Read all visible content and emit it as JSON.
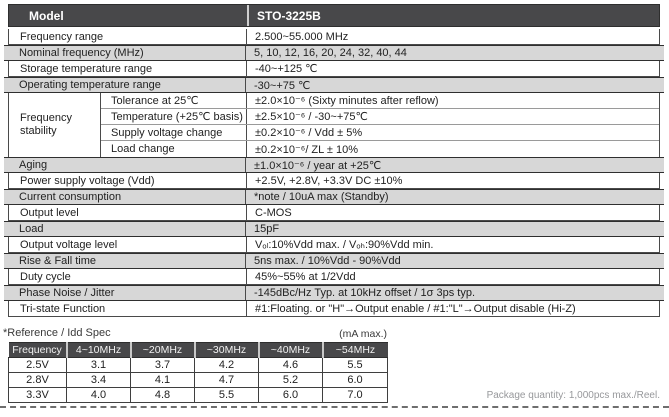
{
  "colors": {
    "header_bg": "#48484a",
    "shaded_row_bg": "#d7d7d7",
    "border_dark": "#4a4a4a",
    "note_gray": "#97989b"
  },
  "spec": {
    "header": {
      "label": "Model",
      "value": "STO-3225B"
    },
    "rows": [
      {
        "label": "Frequency range",
        "value": "2.500~55.000 MHz"
      },
      {
        "label": "Nominal frequency (MHz)",
        "value": "5, 10, 12, 16, 20, 24, 32, 40, 44"
      },
      {
        "label": "Storage temperature range",
        "value": "-40~+125 ℃"
      },
      {
        "label": "Operating temperature range",
        "value": "-30~+75 ℃"
      },
      {
        "label": "Aging",
        "value": "±1.0×10⁻⁶ / year at +25℃"
      },
      {
        "label": "Power supply voltage (Vdd)",
        "value": "+2.5V, +2.8V, +3.3V DC ±10%"
      },
      {
        "label": "Current consumption",
        "value": "*note / 10uA max (Standby)"
      },
      {
        "label": "Output level",
        "value": "C-MOS"
      },
      {
        "label": "Load",
        "value": "15pF"
      },
      {
        "label": "Output voltage level",
        "value": "Vₒₗ:10%Vdd max. / Vₒₕ:90%Vdd min."
      },
      {
        "label": "Rise & Fall time",
        "value": "5ns max. / 10%Vdd - 90%Vdd"
      },
      {
        "label": "Duty cycle",
        "value": "45%~55% at 1/2Vdd"
      },
      {
        "label": "Phase Noise / Jitter",
        "value": "-145dBc/Hz Typ. at 10kHz offset / 1σ 3ps typ."
      },
      {
        "label": "Tri-state Function",
        "value": "#1:Floating. or \"H\"→Output enable / #1:\"L\"→Output disable (Hi-Z)"
      }
    ],
    "stability": {
      "label": "Frequency stability",
      "rows": [
        {
          "label": "Tolerance at 25℃",
          "value": "±2.0×10⁻⁶ (Sixty minutes after reflow)"
        },
        {
          "label": "Temperature (+25℃ basis)",
          "value": "±2.5×10⁻⁶ / -30~+75℃"
        },
        {
          "label": "Supply voltage change",
          "value": "±0.2×10⁻⁶ / Vdd ± 5%"
        },
        {
          "label": "Load change",
          "value": "±0.2×10⁻⁶/ ZL ± 10%"
        }
      ]
    }
  },
  "idd": {
    "title": "*Reference / Idd Spec",
    "unit": "(mA max.)",
    "columns": [
      "Frequency",
      "4~10MHz",
      "~20MHz",
      "~30MHz",
      "~40MHz",
      "~54MHz"
    ],
    "rows": [
      [
        "2.5V",
        "3.1",
        "3.7",
        "4.2",
        "4.6",
        "5.5"
      ],
      [
        "2.8V",
        "3.4",
        "4.1",
        "4.7",
        "5.2",
        "6.0"
      ],
      [
        "3.3V",
        "4.0",
        "4.8",
        "5.5",
        "6.0",
        "7.0"
      ]
    ]
  },
  "footer": {
    "package_note": "Package quantity: 1,000pcs max./Reel."
  }
}
